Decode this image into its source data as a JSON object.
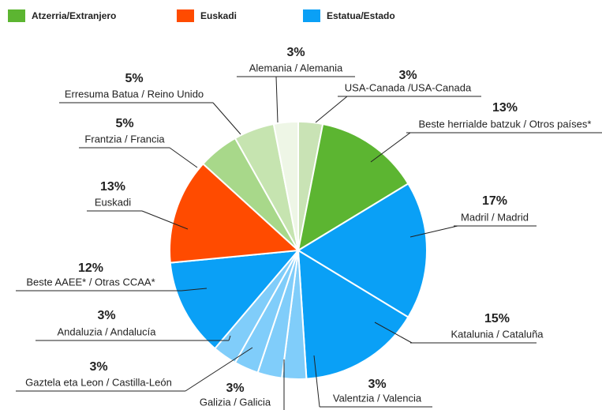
{
  "chart_data": {
    "type": "pie",
    "legend": [
      {
        "name": "Atzerria/Extranjero",
        "color": "#5cb531"
      },
      {
        "name": "Euskadi",
        "color": "#ff4b00"
      },
      {
        "name": "Estatua/Estado",
        "color": "#0aa0f6"
      }
    ],
    "categories": [
      "USA-Canada /USA-Canada",
      "Beste herrialde batzuk / Otros países*",
      "Madril / Madrid",
      "Katalunia / Cataluña",
      "Valentzia / Valencia",
      "Galizia / Galicia",
      "Gaztela eta Leon / Castilla-León",
      "Andaluzia / Andalucía",
      "Beste AAEE* / Otras CCAA*",
      "Euskadi",
      "Frantzia / Francia",
      "Erresuma Batua / Reino Unido",
      "Alemania / Alemania"
    ],
    "values": [
      3,
      13,
      17,
      15,
      3,
      3,
      3,
      3,
      12,
      13,
      5,
      5,
      3
    ],
    "value_labels": [
      "3%",
      "13%",
      "17%",
      "15%",
      "3%",
      "3%",
      "3%",
      "3%",
      "12%",
      "13%",
      "5%",
      "5%",
      "3%"
    ],
    "colors": [
      "#c9e3b5",
      "#5cb531",
      "#0aa0f6",
      "#0aa0f6",
      "#80cdfa",
      "#80cdfa",
      "#80cdfa",
      "#80cdfa",
      "#0aa0f6",
      "#ff4b00",
      "#a8d88a",
      "#c6e4b0",
      "#eef6e6"
    ]
  }
}
